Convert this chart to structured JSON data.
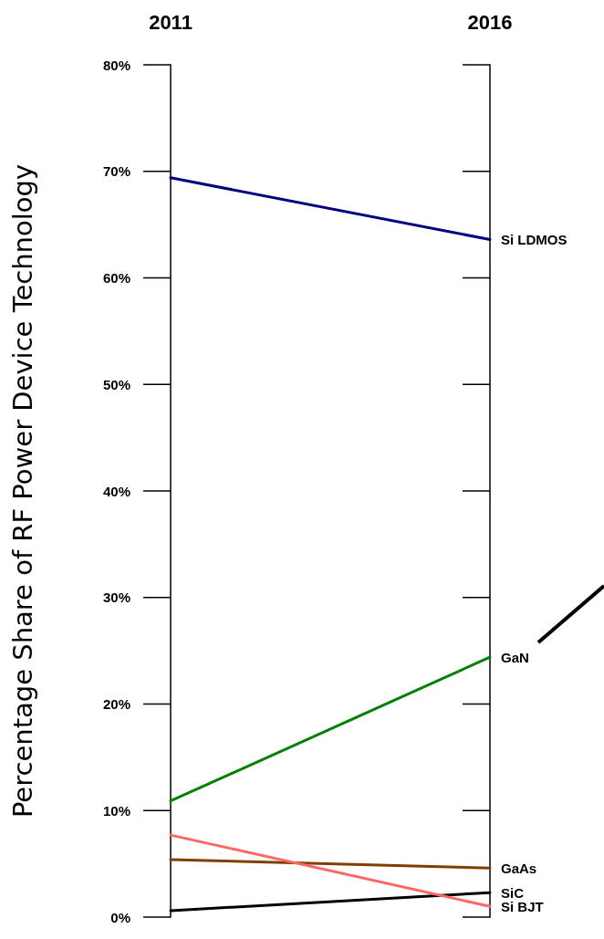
{
  "chart_data": {
    "type": "line",
    "ylabel": "Percentage Share of RF Power Device Technology",
    "categories": [
      "2011",
      "2016"
    ],
    "series": [
      {
        "name": "Si LDMOS",
        "color": "#000080",
        "values": [
          69.4,
          63.6
        ]
      },
      {
        "name": "GaN",
        "color": "#008000",
        "values": [
          10.9,
          24.4
        ]
      },
      {
        "name": "GaAs",
        "color": "#7f3f00",
        "values": [
          5.4,
          4.6
        ]
      },
      {
        "name": "SiC",
        "color": "#000000",
        "values": [
          0.6,
          2.3
        ]
      },
      {
        "name": "Si BJT",
        "color": "#ff6666",
        "values": [
          7.7,
          1.0
        ]
      }
    ],
    "ylim": [
      0,
      80
    ],
    "yticks": [
      {
        "value": 0,
        "label": "0%"
      },
      {
        "value": 10,
        "label": "10%"
      },
      {
        "value": 20,
        "label": "20%"
      },
      {
        "value": 30,
        "label": "30%"
      },
      {
        "value": 40,
        "label": "40%"
      },
      {
        "value": 50,
        "label": "50%"
      },
      {
        "value": 60,
        "label": "60%"
      },
      {
        "value": 70,
        "label": "70%"
      },
      {
        "value": 80,
        "label": "80%"
      }
    ],
    "legend": false,
    "marker": "none",
    "line_style": "solid"
  }
}
